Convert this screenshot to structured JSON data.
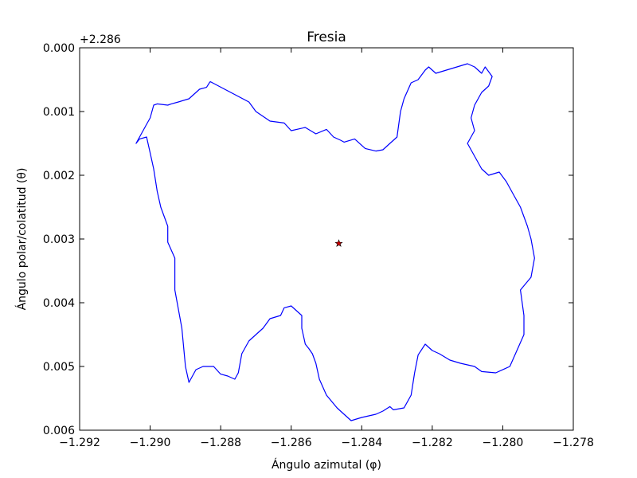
{
  "chart_data": {
    "type": "line",
    "title": "Fresia",
    "xlabel": "Ángulo azimutal (φ)",
    "ylabel": "Ángulo polar/colatitud (θ)",
    "y_offset_label": "+2.286",
    "xlim": [
      -1.292,
      -1.278
    ],
    "ylim": [
      0.0,
      0.006
    ],
    "y_inverted": true,
    "x_ticks": [
      -1.292,
      -1.29,
      -1.288,
      -1.286,
      -1.284,
      -1.282,
      -1.28,
      -1.278
    ],
    "x_tick_labels": [
      "−1.292",
      "−1.290",
      "−1.288",
      "−1.286",
      "−1.284",
      "−1.282",
      "−1.280",
      "−1.278"
    ],
    "y_ticks": [
      0.0,
      0.001,
      0.002,
      0.003,
      0.004,
      0.005,
      0.006
    ],
    "y_tick_labels": [
      "0.000",
      "0.001",
      "0.002",
      "0.003",
      "0.004",
      "0.005",
      "0.006"
    ],
    "grid": false,
    "colors": {
      "outline": "#0000ff",
      "marker": "#cc0000",
      "frame": "#000000"
    },
    "series": [
      {
        "kind": "outline",
        "x": [
          -1.2883,
          -1.2872,
          -1.287,
          -1.2866,
          -1.2862,
          -1.286,
          -1.2856,
          -1.2853,
          -1.285,
          -1.2848,
          -1.2846,
          -1.2845,
          -1.2842,
          -1.2839,
          -1.2836,
          -1.2834,
          -1.2832,
          -1.283,
          -1.2829,
          -1.2828,
          -1.2826,
          -1.2824,
          -1.2822,
          -1.2821,
          -1.2819,
          -1.2816,
          -1.2813,
          -1.281,
          -1.2808,
          -1.2806,
          -1.2805,
          -1.2803,
          -1.2804,
          -1.2806,
          -1.2808,
          -1.2809,
          -1.2808,
          -1.281,
          -1.2808,
          -1.2806,
          -1.2804,
          -1.2801,
          -1.2799,
          -1.2797,
          -1.2795,
          -1.2793,
          -1.2792,
          -1.2791,
          -1.2792,
          -1.2795,
          -1.2794,
          -1.2794,
          -1.2798,
          -1.2802,
          -1.2806,
          -1.2808,
          -1.2812,
          -1.2815,
          -1.2818,
          -1.282,
          -1.2822,
          -1.2824,
          -1.2825,
          -1.2826,
          -1.2828,
          -1.2831,
          -1.2832,
          -1.2834,
          -1.2836,
          -1.284,
          -1.2843,
          -1.2845,
          -1.2847,
          -1.285,
          -1.2852,
          -1.2853,
          -1.2854,
          -1.2855,
          -1.2856,
          -1.2857,
          -1.2857,
          -1.2859,
          -1.286,
          -1.2862,
          -1.2863,
          -1.2866,
          -1.2868,
          -1.287,
          -1.2872,
          -1.2874,
          -1.2875,
          -1.2876,
          -1.2878,
          -1.288,
          -1.2882,
          -1.2885,
          -1.2887,
          -1.2888,
          -1.2889,
          -1.289,
          -1.2891,
          -1.2893,
          -1.2893,
          -1.2895,
          -1.2895,
          -1.2897,
          -1.2898,
          -1.2899,
          -1.29,
          -1.2901,
          -1.2903,
          -1.2904,
          -1.2903,
          -1.2901,
          -1.29,
          -1.2899,
          -1.2898,
          -1.2895,
          -1.2894,
          -1.2892,
          -1.2889,
          -1.2886,
          -1.2884,
          -1.2883
        ],
        "y": [
          0.00053,
          0.00085,
          0.001,
          0.00115,
          0.00118,
          0.0013,
          0.00125,
          0.00135,
          0.00128,
          0.0014,
          0.00145,
          0.00148,
          0.00143,
          0.00158,
          0.00162,
          0.0016,
          0.0015,
          0.0014,
          0.001,
          0.0008,
          0.00055,
          0.0005,
          0.00035,
          0.0003,
          0.0004,
          0.00035,
          0.0003,
          0.00025,
          0.0003,
          0.0004,
          0.0003,
          0.00045,
          0.0006,
          0.0007,
          0.0009,
          0.0011,
          0.0013,
          0.0015,
          0.0017,
          0.0019,
          0.002,
          0.00195,
          0.0021,
          0.0023,
          0.0025,
          0.0028,
          0.003,
          0.0033,
          0.0036,
          0.0038,
          0.0042,
          0.0045,
          0.005,
          0.0051,
          0.00508,
          0.005,
          0.00495,
          0.0049,
          0.0048,
          0.00475,
          0.00465,
          0.00482,
          0.0051,
          0.00545,
          0.00565,
          0.00568,
          0.00563,
          0.0057,
          0.00575,
          0.0058,
          0.00585,
          0.00575,
          0.00565,
          0.00545,
          0.0052,
          0.00495,
          0.0048,
          0.00472,
          0.00465,
          0.0044,
          0.0042,
          0.0041,
          0.00405,
          0.00408,
          0.0042,
          0.00425,
          0.0044,
          0.0045,
          0.0046,
          0.0048,
          0.0051,
          0.0052,
          0.00515,
          0.00512,
          0.005,
          0.005,
          0.00505,
          0.00515,
          0.00525,
          0.005,
          0.0044,
          0.0038,
          0.0033,
          0.00305,
          0.0028,
          0.0025,
          0.00225,
          0.0019,
          0.00165,
          0.0014,
          0.00143,
          0.0015,
          0.0014,
          0.0012,
          0.0011,
          0.0009,
          0.00088,
          0.0009,
          0.00088,
          0.00085,
          0.0008,
          0.00065,
          0.00062,
          0.00053
        ]
      },
      {
        "kind": "marker",
        "marker": "star",
        "x": [
          -1.28465
        ],
        "y": [
          0.00307
        ]
      }
    ]
  }
}
